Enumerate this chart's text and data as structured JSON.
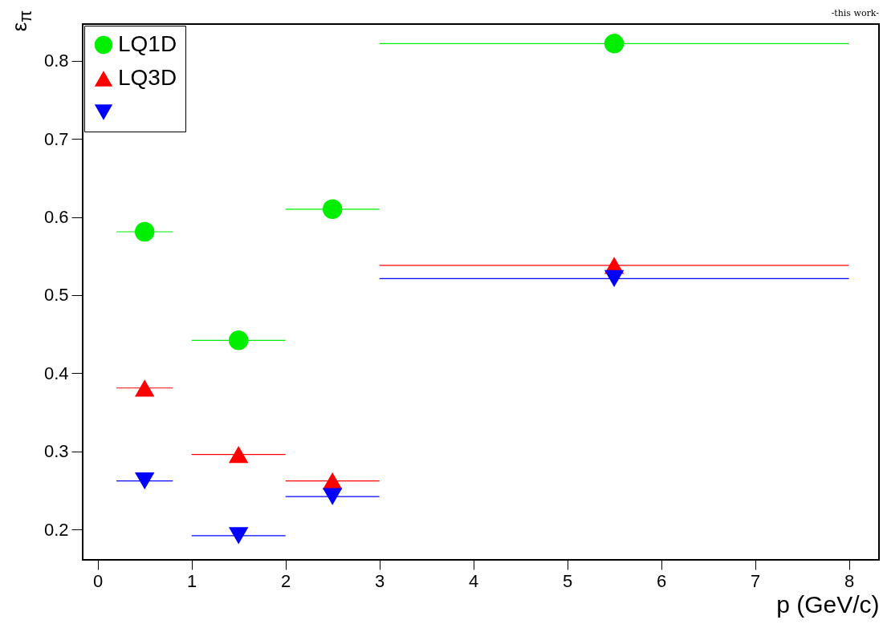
{
  "chart_data": {
    "type": "scatter",
    "xlabel": "p (GeV/c)",
    "ylabel": "ε$_{π}$",
    "annotations": [
      "-this work-"
    ],
    "x": [
      0.5,
      1.5,
      2.5,
      5.5
    ],
    "series": [
      {
        "name": "LQ1D",
        "color": "#00ee00",
        "marker": "circle",
        "values": [
          0.581,
          0.442,
          0.61,
          0.822
        ],
        "xerrors": [
          [
            0.2,
            0.8
          ],
          [
            1,
            2
          ],
          [
            2,
            3
          ],
          [
            3,
            8
          ]
        ]
      },
      {
        "name": "LQ3D",
        "color": "#ff0000",
        "marker": "triangle",
        "values": [
          0.381,
          0.296,
          0.262,
          0.538
        ],
        "xerrors": [
          [
            0.2,
            0.8
          ],
          [
            1,
            2
          ],
          [
            2,
            3
          ],
          [
            3,
            8
          ]
        ]
      },
      {
        "color": "#0000ff",
        "marker": "triangle-down",
        "values": [
          0.262,
          0.192,
          0.242,
          0.521
        ],
        "xerrors": [
          [
            0.2,
            0.8
          ],
          [
            1,
            2
          ],
          [
            2,
            3
          ],
          [
            3,
            8
          ]
        ]
      }
    ],
    "xlim": [
      -0.16,
      8.32
    ],
    "ylim": [
      0.161,
      0.847
    ],
    "xticks": [
      0,
      1,
      2,
      3,
      4,
      5,
      6,
      7,
      8
    ],
    "yticks": [
      0.2,
      0.3,
      0.4,
      0.5,
      0.6,
      0.7,
      0.8
    ],
    "grid": false,
    "legend": "top left"
  }
}
